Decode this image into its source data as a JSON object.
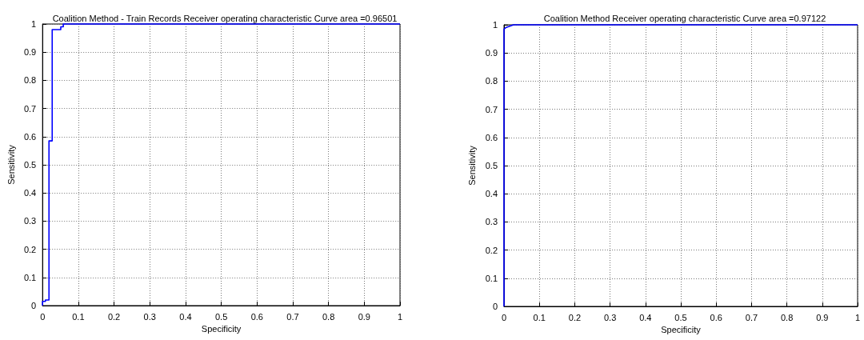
{
  "chart_data": [
    {
      "type": "line",
      "title": "Coalition Method - Train Records Receiver operating characteristic Curve area =0.96501",
      "xlabel": "Specificity",
      "ylabel": "Sensitivity",
      "xlim": [
        0,
        1
      ],
      "ylim": [
        0,
        1
      ],
      "xticks": [
        0,
        0.1,
        0.2,
        0.3,
        0.4,
        0.5,
        0.6,
        0.7,
        0.8,
        0.9,
        1
      ],
      "yticks": [
        0,
        0.1,
        0.2,
        0.3,
        0.4,
        0.5,
        0.6,
        0.7,
        0.8,
        0.9,
        1
      ],
      "grid": true,
      "series": [
        {
          "color": "#0000ff",
          "x": [
            0,
            0,
            0.008,
            0.008,
            0.018,
            0.018,
            0.027,
            0.027,
            0.051,
            0.051,
            0.058,
            0.058,
            1
          ],
          "values": [
            0,
            0.015,
            0.015,
            0.02,
            0.02,
            0.585,
            0.585,
            0.98,
            0.98,
            0.99,
            0.99,
            1,
            1
          ]
        }
      ]
    },
    {
      "type": "line",
      "title": "Coalition Method Receiver operating characteristic Curve area =0.97122",
      "xlabel": "Specificity",
      "ylabel": "Sensitivity",
      "xlim": [
        0,
        1
      ],
      "ylim": [
        0,
        1
      ],
      "xticks": [
        0,
        0.1,
        0.2,
        0.3,
        0.4,
        0.5,
        0.6,
        0.7,
        0.8,
        0.9,
        1
      ],
      "yticks": [
        0,
        0.1,
        0.2,
        0.3,
        0.4,
        0.5,
        0.6,
        0.7,
        0.8,
        0.9,
        1
      ],
      "grid": true,
      "series": [
        {
          "color": "#0000ff",
          "x": [
            0,
            0,
            0.005,
            0.027,
            1
          ],
          "values": [
            0,
            0.985,
            0.99,
            1,
            1
          ]
        }
      ]
    }
  ]
}
